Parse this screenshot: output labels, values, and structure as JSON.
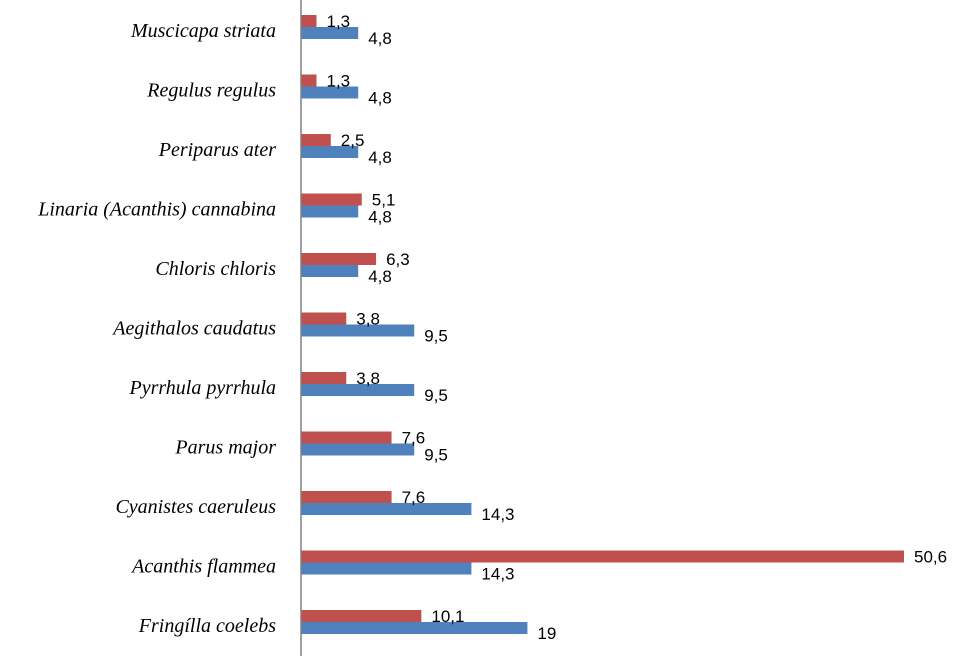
{
  "chart_data": {
    "type": "bar",
    "orientation": "horizontal",
    "categories": [
      "Muscicapa striata",
      "Regulus regulus",
      "Periparus ater",
      "Linaria (Acanthis) cannabina",
      "Chloris chloris",
      "Aegithalos caudatus",
      "Pyrrhula pyrrhula",
      "Parus major",
      "Cyanistes caeruleus",
      "Acanthis flammea",
      "Fringílla coelebs"
    ],
    "series": [
      {
        "color": "#c0504d",
        "values": [
          1.3,
          1.3,
          2.5,
          5.1,
          6.3,
          3.8,
          3.8,
          7.6,
          7.6,
          50.6,
          10.1
        ],
        "labels": [
          "1,3",
          "1,3",
          "2,5",
          "5,1",
          "6,3",
          "3,8",
          "3,8",
          "7,6",
          "7,6",
          "50,6",
          "10,1"
        ]
      },
      {
        "color": "#4f81bd",
        "values": [
          4.8,
          4.8,
          4.8,
          4.8,
          4.8,
          9.5,
          9.5,
          9.5,
          14.3,
          14.3,
          19
        ],
        "labels": [
          "4,8",
          "4,8",
          "4,8",
          "4,8",
          "4,8",
          "9,5",
          "9,5",
          "9,5",
          "14,3",
          "14,3",
          "19"
        ]
      }
    ],
    "xlim": [
      0,
      50.6
    ],
    "grid": false,
    "legend": "none",
    "axis_color": "#808080"
  }
}
